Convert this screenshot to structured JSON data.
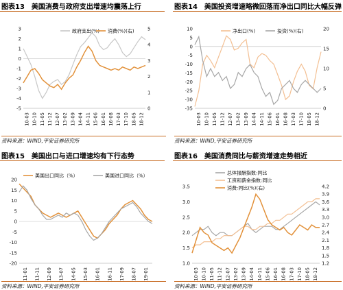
{
  "panels": [
    {
      "number": "图表13",
      "title": "美国消费与政府支出增速均震荡上行",
      "source": "资料来源：WIND,平安证券研究所",
      "chart_data": {
        "type": "line",
        "x_tick_labels": [
          "10-03",
          "10-10",
          "11-05",
          "11-12",
          "12-07",
          "13-02",
          "13-09",
          "14-04",
          "14-11",
          "15-06",
          "16-01",
          "16-08",
          "17-03",
          "17-10",
          "18-05",
          "18-12"
        ],
        "y_left_ticks": [
          3.0,
          2.0,
          1.0,
          0.0,
          -1.0,
          -2.0,
          -3.0,
          -4.0,
          -5.0
        ],
        "y_right_ticks": [
          5.0,
          4.0,
          3.0,
          2.0,
          1.0,
          0.0
        ],
        "ylim_left": [
          -5,
          3
        ],
        "ylim_right": [
          0,
          5
        ],
        "series": [
          {
            "name": "政府支出(%)",
            "axis": "left",
            "color": "#c7c7c7",
            "values": [
              1.0,
              0.2,
              -0.6,
              -1.8,
              -3.2,
              -4.0,
              -3.4,
              -2.6,
              -2.3,
              -2.1,
              -2.6,
              -2.3,
              -1.6,
              -0.6,
              0.4,
              1.2,
              1.6,
              2.1,
              2.6,
              2.2,
              1.3,
              0.9,
              1.1,
              1.6,
              2.0,
              1.4,
              0.6,
              0.2,
              0.5,
              1.1,
              1.7,
              2.2,
              1.9
            ]
          },
          {
            "name": "消费(%)(右)",
            "axis": "right",
            "color": "#e2913a",
            "values": [
              1.6,
              2.0,
              2.4,
              2.5,
              2.2,
              1.8,
              1.6,
              1.4,
              1.3,
              1.5,
              1.2,
              1.6,
              1.9,
              2.1,
              2.6,
              3.0,
              3.5,
              3.9,
              3.6,
              3.0,
              2.7,
              2.6,
              2.5,
              2.4,
              2.5,
              2.4,
              2.6,
              2.5,
              2.4,
              2.6,
              2.5,
              2.6,
              2.7
            ]
          }
        ]
      }
    },
    {
      "number": "图表14",
      "title": "美国投资增速略微回落而净出口同比大幅反弹",
      "source": "资料来源：WIND,平安证券研究所",
      "chart_data": {
        "type": "line",
        "x_tick_labels": [
          "10-03",
          "10-10",
          "11-05",
          "11-12",
          "12-07",
          "13-02",
          "13-09",
          "14-04",
          "14-11",
          "15-06",
          "16-01",
          "16-08",
          "17-03",
          "17-10",
          "18-05",
          "18-12"
        ],
        "y_left_ticks": [
          10,
          5,
          0,
          -5,
          -10,
          -15,
          -20,
          -25,
          -30,
          -35
        ],
        "y_right_ticks": [
          20,
          15,
          10,
          5,
          0
        ],
        "ylim_left": [
          -35,
          10
        ],
        "ylim_right": [
          0,
          20
        ],
        "series": [
          {
            "name": "净出口(%)",
            "axis": "left",
            "color": "#f3bf92",
            "values": [
              -34,
              -25,
              -10,
              -5,
              -8,
              -12,
              -6,
              0,
              6,
              4,
              -2,
              -1,
              2,
              4,
              -10,
              -12,
              -6,
              -4,
              -5,
              -8,
              -10,
              -16,
              -22,
              -30,
              -28,
              -20,
              -14,
              -10,
              -14,
              -22,
              -24,
              -12,
              -3
            ]
          },
          {
            "name": "投资(%)(右)",
            "axis": "right",
            "color": "#a6a6a6",
            "values": [
              16,
              18,
              12,
              8,
              10,
              8,
              9,
              7,
              8,
              5,
              6,
              9,
              8,
              10,
              11,
              9,
              8,
              5,
              3,
              4,
              1,
              2,
              5,
              6,
              7,
              5,
              4,
              6,
              7,
              6,
              5,
              4,
              5
            ]
          }
        ]
      }
    },
    {
      "number": "图表15",
      "title": "美国出口与进口增速均有下行态势",
      "source": "资料来源：WIND,平安证券研究所",
      "chart_data": {
        "type": "line",
        "x_tick_labels": [
          "11-01",
          "11-11",
          "12-09",
          "13-07",
          "14-05",
          "15-03",
          "16-01",
          "16-11",
          "17-09",
          "18-07",
          "19-01"
        ],
        "y_ticks": [
          20,
          15,
          10,
          5,
          0,
          -5,
          -10,
          -15,
          -20
        ],
        "ylim": [
          -20,
          20
        ],
        "series": [
          {
            "name": "美国出口同比（%）",
            "color": "#e2913a",
            "values": [
              18,
              16,
              14,
              12,
              8,
              6,
              4,
              3,
              2,
              3,
              4,
              3,
              2,
              3,
              4,
              5,
              2,
              -1,
              -4,
              -7,
              -8,
              -6,
              -4,
              -1,
              1,
              3,
              6,
              8,
              9,
              10,
              8,
              6,
              3,
              1,
              0
            ]
          },
          {
            "name": "美国进口同比（%）",
            "color": "#a6a6a6",
            "values": [
              14,
              17,
              15,
              11,
              8,
              6,
              3,
              1,
              1,
              2,
              3,
              2,
              4,
              3,
              4,
              3,
              0,
              -4,
              -7,
              -9,
              -8,
              -6,
              -3,
              0,
              2,
              4,
              6,
              7,
              8,
              9,
              7,
              4,
              2,
              0,
              -1
            ]
          }
        ]
      }
    },
    {
      "number": "图表16",
      "title": "美国消费同比与薪资增速走势相近",
      "source": "资料来源：WIND,平安证券研究所",
      "chart_data": {
        "type": "line",
        "x_tick_labels": [
          "10-03",
          "10-10",
          "11-05",
          "11-12",
          "12-07",
          "13-02",
          "13-09",
          "14-04",
          "14-11",
          "15-06",
          "16-01",
          "16-08",
          "17-03",
          "17-10",
          "18-05",
          "18-12"
        ],
        "y_left_ticks": [
          3.5,
          3.0,
          2.5,
          2.0,
          1.5,
          1.0
        ],
        "y_right_ticks": [
          4.2,
          3.9,
          3.6,
          3.3,
          3.0,
          2.7,
          2.4,
          2.1,
          1.8,
          1.5,
          1.2
        ],
        "ylim_left": [
          1.0,
          3.5
        ],
        "ylim_right": [
          1.2,
          4.2
        ],
        "series": [
          {
            "name": "总体报酬指数:同比",
            "axis": "left",
            "color": "#a6a6a6",
            "values": [
              1.9,
              2.0,
              2.1,
              2.1,
              2.2,
              2.0,
              1.9,
              2.0,
              2.0,
              1.9,
              1.9,
              2.0,
              2.1,
              2.2,
              2.3,
              2.1,
              2.0,
              2.1,
              2.2,
              2.2,
              2.2,
              2.1,
              2.1,
              2.2,
              2.3,
              2.4,
              2.5,
              2.6,
              2.7,
              2.8,
              2.9,
              3.0,
              2.9
            ]
          },
          {
            "name": "工资和薪金指数:同比",
            "axis": "left",
            "color": "#f3bf92",
            "values": [
              1.5,
              1.6,
              1.6,
              1.7,
              1.7,
              1.7,
              1.8,
              1.8,
              1.9,
              1.9,
              1.9,
              2.0,
              2.1,
              2.2,
              2.2,
              2.1,
              2.1,
              2.2,
              2.2,
              2.3,
              2.3,
              2.4,
              2.4,
              2.5,
              2.6,
              2.6,
              2.7,
              2.8,
              2.9,
              3.0,
              3.0,
              3.1,
              3.1
            ]
          },
          {
            "name": "消费:同比(%)(右)",
            "axis": "right",
            "color": "#e2913a",
            "values": [
              1.6,
              2.1,
              2.6,
              2.4,
              2.3,
              2.0,
              1.9,
              1.8,
              1.7,
              1.8,
              1.6,
              1.9,
              2.2,
              2.6,
              3.0,
              3.4,
              3.9,
              3.7,
              3.3,
              2.9,
              2.7,
              2.6,
              2.5,
              2.6,
              2.4,
              2.3,
              2.5,
              2.7,
              2.6,
              2.5,
              2.7,
              2.6,
              2.6
            ]
          }
        ]
      }
    }
  ]
}
